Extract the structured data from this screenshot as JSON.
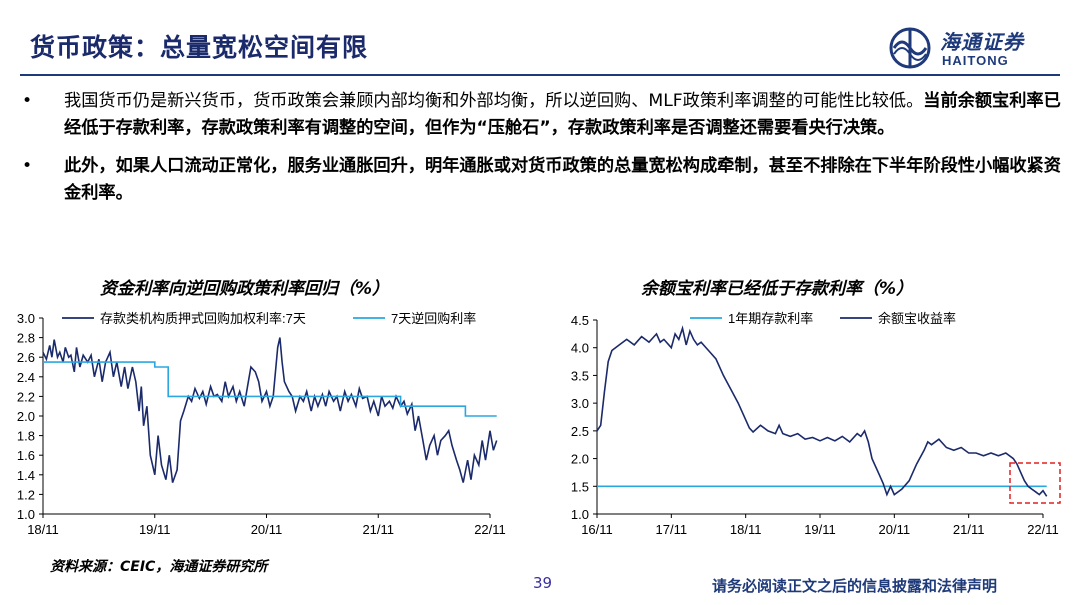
{
  "header": {
    "title": "货币政策：总量宽松空间有限",
    "logo_cn": "海通证券",
    "logo_en": "HAITONG",
    "brand_color": "#1f3a7a"
  },
  "bullets": [
    {
      "parts": [
        {
          "text": "我国货币仍是新兴货币，货币政策会兼顾内部均衡和外部均衡，所以逆回购、MLF政策利率调整的可能性比较低。",
          "bold": false
        },
        {
          "text": "当前余额宝利率已经低于存款利率，存款政策利率有调整的空间，但作为“压舱石”，存款政策利率是否调整还需要看央行决策。",
          "bold": true
        }
      ]
    },
    {
      "parts": [
        {
          "text": "此外，如果人口流动正常化，服务业通胀回升，明年通胀或对货币政策的总量宽松构成牵制，甚至不排除在下半年阶段性小幅收紧资金利率。",
          "bold": true
        }
      ]
    }
  ],
  "bullet_char": "•",
  "chart_data": [
    {
      "type": "line",
      "title": "资金利率向逆回购政策利率回归（%）",
      "ylim": [
        1.0,
        3.0
      ],
      "yticks": [
        "1.0",
        "1.2",
        "1.4",
        "1.6",
        "1.8",
        "2.0",
        "2.2",
        "2.4",
        "2.6",
        "2.8",
        "3.0"
      ],
      "xticks": [
        "18/11",
        "19/11",
        "20/11",
        "21/11",
        "22/11"
      ],
      "legend": "top",
      "grid": false,
      "series": [
        {
          "name": "存款类机构质押式回购加权利率:7天",
          "color": "#1b2a6b",
          "points": [
            [
              0,
              2.65
            ],
            [
              0.03,
              2.58
            ],
            [
              0.06,
              2.72
            ],
            [
              0.08,
              2.6
            ],
            [
              0.1,
              2.78
            ],
            [
              0.13,
              2.6
            ],
            [
              0.15,
              2.65
            ],
            [
              0.18,
              2.55
            ],
            [
              0.2,
              2.7
            ],
            [
              0.23,
              2.6
            ],
            [
              0.25,
              2.62
            ],
            [
              0.28,
              2.45
            ],
            [
              0.3,
              2.7
            ],
            [
              0.33,
              2.5
            ],
            [
              0.36,
              2.62
            ],
            [
              0.4,
              2.55
            ],
            [
              0.43,
              2.62
            ],
            [
              0.46,
              2.4
            ],
            [
              0.5,
              2.58
            ],
            [
              0.53,
              2.35
            ],
            [
              0.56,
              2.55
            ],
            [
              0.6,
              2.65
            ],
            [
              0.63,
              2.4
            ],
            [
              0.66,
              2.55
            ],
            [
              0.7,
              2.3
            ],
            [
              0.73,
              2.5
            ],
            [
              0.76,
              2.28
            ],
            [
              0.8,
              2.5
            ],
            [
              0.83,
              2.35
            ],
            [
              0.86,
              2.05
            ],
            [
              0.88,
              2.3
            ],
            [
              0.9,
              1.9
            ],
            [
              0.93,
              2.1
            ],
            [
              0.96,
              1.6
            ],
            [
              1.0,
              1.4
            ],
            [
              1.03,
              1.8
            ],
            [
              1.06,
              1.5
            ],
            [
              1.1,
              1.35
            ],
            [
              1.13,
              1.6
            ],
            [
              1.16,
              1.32
            ],
            [
              1.2,
              1.45
            ],
            [
              1.23,
              1.95
            ],
            [
              1.26,
              2.05
            ],
            [
              1.3,
              2.2
            ],
            [
              1.33,
              2.15
            ],
            [
              1.36,
              2.28
            ],
            [
              1.4,
              2.18
            ],
            [
              1.43,
              2.25
            ],
            [
              1.46,
              2.12
            ],
            [
              1.5,
              2.3
            ],
            [
              1.53,
              2.2
            ],
            [
              1.56,
              2.22
            ],
            [
              1.6,
              2.15
            ],
            [
              1.63,
              2.35
            ],
            [
              1.66,
              2.2
            ],
            [
              1.7,
              2.3
            ],
            [
              1.73,
              2.15
            ],
            [
              1.76,
              2.25
            ],
            [
              1.8,
              2.1
            ],
            [
              1.83,
              2.3
            ],
            [
              1.86,
              2.5
            ],
            [
              1.9,
              2.45
            ],
            [
              1.93,
              2.35
            ],
            [
              1.96,
              2.15
            ],
            [
              2.0,
              2.25
            ],
            [
              2.03,
              2.1
            ],
            [
              2.06,
              2.2
            ],
            [
              2.1,
              2.7
            ],
            [
              2.12,
              2.8
            ],
            [
              2.14,
              2.55
            ],
            [
              2.16,
              2.35
            ],
            [
              2.2,
              2.25
            ],
            [
              2.23,
              2.2
            ],
            [
              2.26,
              2.05
            ],
            [
              2.3,
              2.2
            ],
            [
              2.33,
              2.15
            ],
            [
              2.36,
              2.25
            ],
            [
              2.4,
              2.05
            ],
            [
              2.43,
              2.2
            ],
            [
              2.46,
              2.1
            ],
            [
              2.5,
              2.22
            ],
            [
              2.53,
              2.1
            ],
            [
              2.56,
              2.25
            ],
            [
              2.6,
              2.15
            ],
            [
              2.63,
              2.2
            ],
            [
              2.66,
              2.05
            ],
            [
              2.7,
              2.25
            ],
            [
              2.73,
              2.15
            ],
            [
              2.76,
              2.22
            ],
            [
              2.8,
              2.1
            ],
            [
              2.83,
              2.28
            ],
            [
              2.86,
              2.18
            ],
            [
              2.9,
              2.2
            ],
            [
              2.93,
              2.05
            ],
            [
              2.96,
              2.15
            ],
            [
              3.0,
              2.0
            ],
            [
              3.03,
              2.2
            ],
            [
              3.06,
              2.1
            ],
            [
              3.1,
              2.15
            ],
            [
              3.13,
              2.08
            ],
            [
              3.16,
              2.2
            ],
            [
              3.2,
              2.1
            ],
            [
              3.23,
              2.15
            ],
            [
              3.26,
              2.02
            ],
            [
              3.3,
              2.12
            ],
            [
              3.33,
              1.85
            ],
            [
              3.36,
              2.0
            ],
            [
              3.4,
              1.75
            ],
            [
              3.43,
              1.55
            ],
            [
              3.46,
              1.7
            ],
            [
              3.5,
              1.8
            ],
            [
              3.53,
              1.6
            ],
            [
              3.56,
              1.75
            ],
            [
              3.6,
              1.8
            ],
            [
              3.63,
              1.85
            ],
            [
              3.66,
              1.7
            ],
            [
              3.7,
              1.55
            ],
            [
              3.73,
              1.45
            ],
            [
              3.76,
              1.32
            ],
            [
              3.8,
              1.55
            ],
            [
              3.83,
              1.35
            ],
            [
              3.86,
              1.6
            ],
            [
              3.9,
              1.5
            ],
            [
              3.93,
              1.75
            ],
            [
              3.96,
              1.55
            ],
            [
              4.0,
              1.85
            ],
            [
              4.03,
              1.65
            ],
            [
              4.06,
              1.75
            ]
          ]
        },
        {
          "name": "7天逆回购利率",
          "color": "#2aa7df",
          "points": [
            [
              0,
              2.55
            ],
            [
              1.0,
              2.55
            ],
            [
              1.0,
              2.5
            ],
            [
              1.12,
              2.5
            ],
            [
              1.12,
              2.2
            ],
            [
              3.2,
              2.2
            ],
            [
              3.2,
              2.1
            ],
            [
              3.78,
              2.1
            ],
            [
              3.78,
              2.0
            ],
            [
              4.06,
              2.0
            ]
          ]
        }
      ]
    },
    {
      "type": "line",
      "title": "余额宝利率已经低于存款利率（%）",
      "ylim": [
        1.0,
        4.5
      ],
      "yticks": [
        "1.0",
        "1.5",
        "2.0",
        "2.5",
        "3.0",
        "3.5",
        "4.0",
        "4.5"
      ],
      "xticks": [
        "16/11",
        "17/11",
        "18/11",
        "19/11",
        "20/11",
        "21/11",
        "22/11"
      ],
      "legend": "top",
      "grid": false,
      "highlight_box": "dashed red, recent period",
      "series": [
        {
          "name": "1年期存款利率",
          "color": "#2aa7df",
          "points": [
            [
              0,
              1.5
            ],
            [
              6.05,
              1.5
            ]
          ]
        },
        {
          "name": "余额宝收益率",
          "color": "#1b2a6b",
          "points": [
            [
              0,
              2.5
            ],
            [
              0.05,
              2.6
            ],
            [
              0.1,
              3.2
            ],
            [
              0.15,
              3.75
            ],
            [
              0.2,
              3.95
            ],
            [
              0.3,
              4.05
            ],
            [
              0.4,
              4.15
            ],
            [
              0.5,
              4.05
            ],
            [
              0.6,
              4.2
            ],
            [
              0.7,
              4.1
            ],
            [
              0.8,
              4.25
            ],
            [
              0.85,
              4.1
            ],
            [
              0.9,
              4.15
            ],
            [
              1.0,
              4.0
            ],
            [
              1.05,
              4.25
            ],
            [
              1.1,
              4.15
            ],
            [
              1.15,
              4.35
            ],
            [
              1.2,
              4.05
            ],
            [
              1.25,
              4.3
            ],
            [
              1.3,
              4.15
            ],
            [
              1.35,
              4.05
            ],
            [
              1.4,
              4.1
            ],
            [
              1.5,
              3.95
            ],
            [
              1.6,
              3.8
            ],
            [
              1.7,
              3.5
            ],
            [
              1.8,
              3.25
            ],
            [
              1.9,
              3.0
            ],
            [
              2.0,
              2.7
            ],
            [
              2.05,
              2.55
            ],
            [
              2.1,
              2.48
            ],
            [
              2.2,
              2.6
            ],
            [
              2.3,
              2.5
            ],
            [
              2.4,
              2.45
            ],
            [
              2.45,
              2.6
            ],
            [
              2.5,
              2.45
            ],
            [
              2.6,
              2.4
            ],
            [
              2.7,
              2.45
            ],
            [
              2.8,
              2.35
            ],
            [
              2.9,
              2.38
            ],
            [
              3.0,
              2.32
            ],
            [
              3.1,
              2.38
            ],
            [
              3.2,
              2.32
            ],
            [
              3.3,
              2.4
            ],
            [
              3.4,
              2.3
            ],
            [
              3.5,
              2.45
            ],
            [
              3.55,
              2.4
            ],
            [
              3.6,
              2.5
            ],
            [
              3.65,
              2.3
            ],
            [
              3.7,
              2.0
            ],
            [
              3.8,
              1.7
            ],
            [
              3.85,
              1.55
            ],
            [
              3.9,
              1.35
            ],
            [
              3.95,
              1.5
            ],
            [
              4.0,
              1.35
            ],
            [
              4.1,
              1.45
            ],
            [
              4.2,
              1.6
            ],
            [
              4.3,
              1.9
            ],
            [
              4.4,
              2.15
            ],
            [
              4.45,
              2.3
            ],
            [
              4.5,
              2.25
            ],
            [
              4.6,
              2.35
            ],
            [
              4.7,
              2.2
            ],
            [
              4.8,
              2.15
            ],
            [
              4.9,
              2.2
            ],
            [
              5.0,
              2.1
            ],
            [
              5.1,
              2.1
            ],
            [
              5.2,
              2.05
            ],
            [
              5.3,
              2.1
            ],
            [
              5.4,
              2.05
            ],
            [
              5.5,
              2.1
            ],
            [
              5.6,
              2.0
            ],
            [
              5.65,
              1.9
            ],
            [
              5.7,
              1.75
            ],
            [
              5.75,
              1.6
            ],
            [
              5.8,
              1.5
            ],
            [
              5.85,
              1.45
            ],
            [
              5.9,
              1.4
            ],
            [
              5.95,
              1.35
            ],
            [
              6.0,
              1.42
            ],
            [
              6.05,
              1.32
            ]
          ]
        }
      ]
    }
  ],
  "footer": {
    "source": "资料来源：CEIC，海通证券研究所",
    "page_number": "39",
    "disclaimer": "请务必阅读正文之后的信息披露和法律声明",
    "page_color": "#3a2fa0"
  }
}
